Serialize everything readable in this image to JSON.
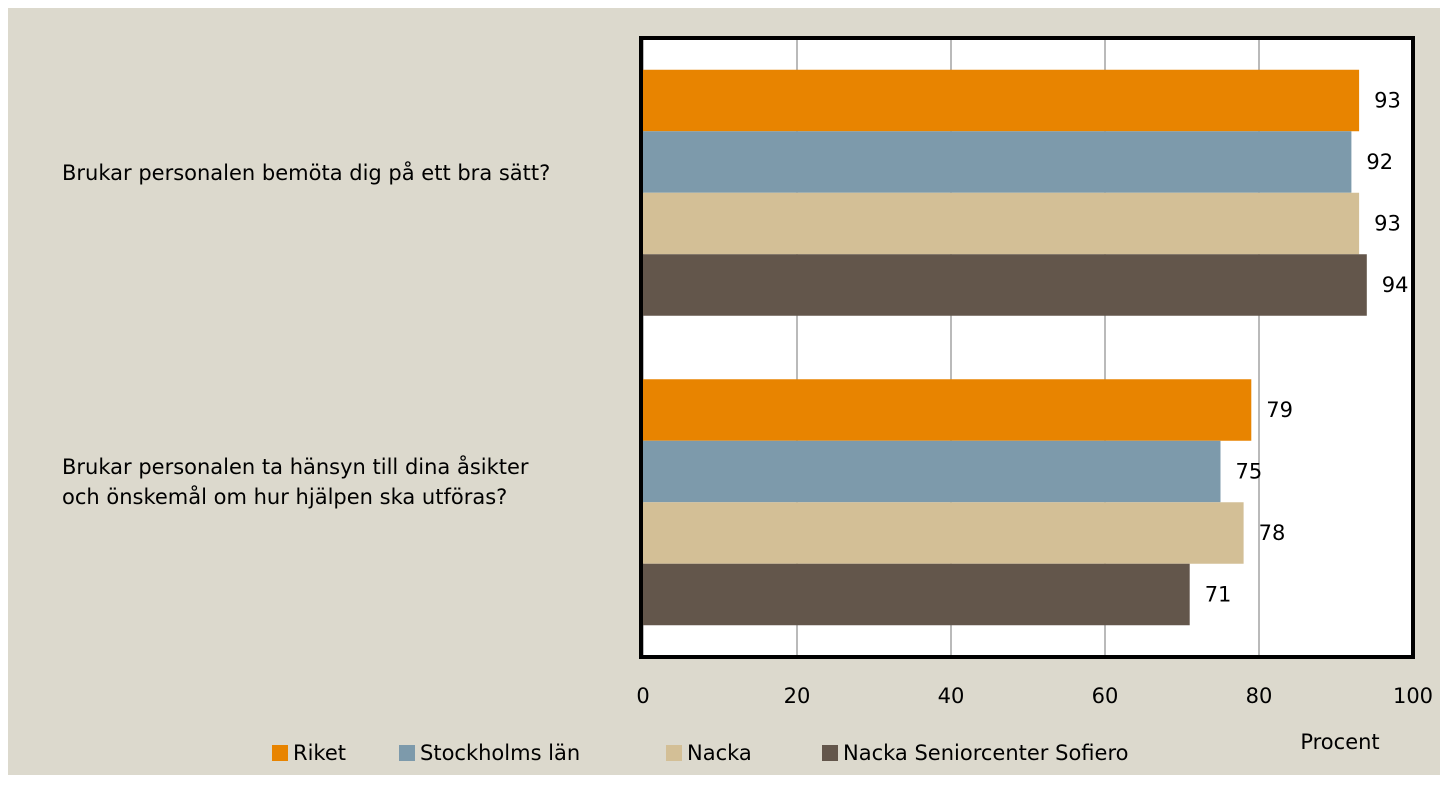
{
  "chart_data": {
    "type": "barh",
    "categories": [
      "Brukar personalen bemöta dig på ett bra sätt?",
      "Brukar personalen ta hänsyn till dina åsikter och önskemål om hur hjälpen ska utföras?"
    ],
    "series": [
      {
        "name": "Riket",
        "color": "#e88400",
        "values": [
          93,
          79
        ]
      },
      {
        "name": "Stockholms län",
        "color": "#7d9aab",
        "values": [
          92,
          75
        ]
      },
      {
        "name": "Nacka",
        "color": "#d3bf96",
        "values": [
          93,
          78
        ]
      },
      {
        "name": "Nacka Seniorcenter Sofiero",
        "color": "#63564b",
        "values": [
          94,
          71
        ]
      }
    ],
    "xlabel": "Procent",
    "xlim": [
      0,
      100
    ],
    "xticks": [
      0,
      20,
      40,
      60,
      80,
      100
    ],
    "grid": true,
    "legend": "bottom"
  }
}
